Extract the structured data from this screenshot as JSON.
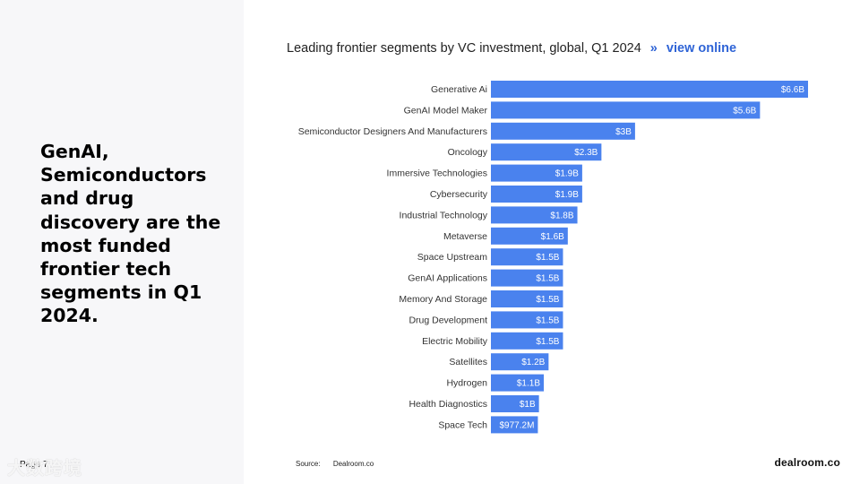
{
  "headline": "GenAI, Semiconductors and drug discovery are the most funded frontier tech segments in Q1 2024.",
  "page_label": "Page 7",
  "watermark": "大数跨境",
  "view_online": {
    "arrow": "»",
    "label": "view online"
  },
  "source": {
    "label": "Source:",
    "value": "Dealroom.co"
  },
  "brand": "dealroom.co",
  "colors": {
    "bar": "#4a82ee",
    "label_text": "#ffffff",
    "category_text": "#333333",
    "link": "#2f64d6"
  },
  "chart_data": {
    "type": "bar",
    "orientation": "horizontal",
    "title": "Leading frontier segments by VC investment, global, Q1 2024",
    "xlabel": "",
    "ylabel": "",
    "unit": "USD billions",
    "xlim": [
      0,
      6.6
    ],
    "grid": false,
    "categories": [
      "Generative Ai",
      "GenAI Model Maker",
      "Semiconductor Designers And Manufacturers",
      "Oncology",
      "Immersive Technologies",
      "Cybersecurity",
      "Industrial Technology",
      "Metaverse",
      "Space Upstream",
      "GenAI Applications",
      "Memory And Storage",
      "Drug Development",
      "Electric Mobility",
      "Satellites",
      "Hydrogen",
      "Health Diagnostics",
      "Space Tech"
    ],
    "values": [
      6.6,
      5.6,
      3.0,
      2.3,
      1.9,
      1.9,
      1.8,
      1.6,
      1.5,
      1.5,
      1.5,
      1.5,
      1.5,
      1.2,
      1.1,
      1.0,
      0.9772
    ],
    "value_labels": [
      "$6.6B",
      "$5.6B",
      "$3B",
      "$2.3B",
      "$1.9B",
      "$1.9B",
      "$1.8B",
      "$1.6B",
      "$1.5B",
      "$1.5B",
      "$1.5B",
      "$1.5B",
      "$1.5B",
      "$1.2B",
      "$1.1B",
      "$1B",
      "$977.2M"
    ]
  }
}
